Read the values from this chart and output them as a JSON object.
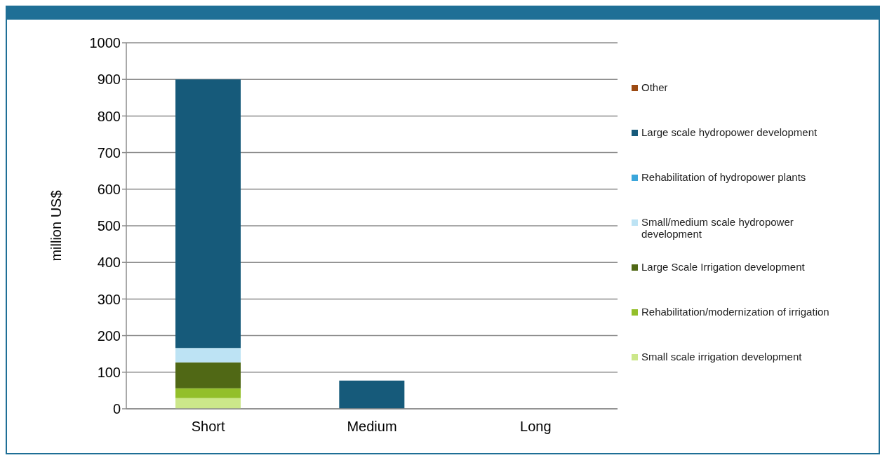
{
  "chart_data": {
    "type": "bar",
    "stacked": true,
    "ylabel": "million US$",
    "categories": [
      "Short",
      "Medium",
      "Long"
    ],
    "ylim": [
      0,
      1000
    ],
    "yticks": [
      0,
      100,
      200,
      300,
      400,
      500,
      600,
      700,
      800,
      900,
      1000
    ],
    "grid": "y",
    "legend": "right",
    "series": [
      {
        "name": "Small scale irrigation development",
        "color": "#cce78a",
        "values": [
          29,
          0,
          0
        ]
      },
      {
        "name": "Rehabilitation/modernization of irrigation",
        "color": "#93bf2a",
        "values": [
          27,
          0,
          0
        ]
      },
      {
        "name": "Large Scale Irrigation development",
        "color": "#506815",
        "values": [
          71,
          0,
          0
        ]
      },
      {
        "name": "Small/medium scale hydropower development",
        "color": "#bde3f4",
        "values": [
          39,
          0,
          0
        ]
      },
      {
        "name": "Rehabilitation of hydropower plants",
        "color": "#3ba6db",
        "values": [
          0,
          0,
          0
        ]
      },
      {
        "name": "Large scale hydropower development",
        "color": "#165a7a",
        "values": [
          734,
          77,
          0
        ]
      },
      {
        "name": "Other",
        "color": "#9c4a12",
        "values": [
          0,
          0,
          0
        ]
      }
    ]
  }
}
